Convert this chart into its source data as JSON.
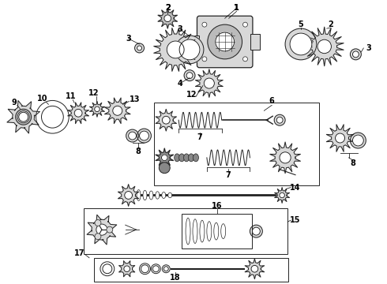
{
  "bg_color": "#ffffff",
  "line_color": "#222222",
  "fig_width": 4.9,
  "fig_height": 3.6,
  "dpi": 100,
  "gray_fill": "#d8d8d8",
  "dark_fill": "#888888",
  "mid_fill": "#bbbbbb"
}
